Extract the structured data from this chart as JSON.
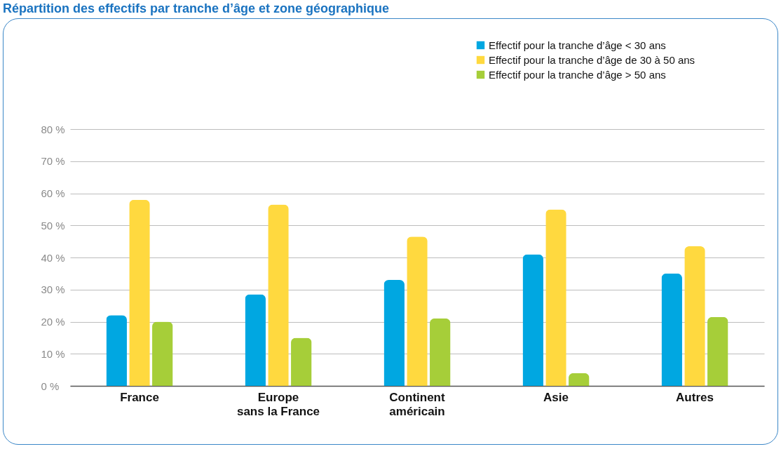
{
  "chart_data": {
    "type": "bar",
    "title": "Répartition des effectifs par tranche d’âge et zone géographique",
    "categories": [
      "France",
      "Europe\nsans la France",
      "Continent\naméricain",
      "Asie",
      "Autres"
    ],
    "series": [
      {
        "name": "Effectif pour la tranche d’âge < 30 ans",
        "color": "#00a7e1",
        "values": [
          22,
          28.5,
          33,
          41,
          35
        ]
      },
      {
        "name": "Effectif pour la tranche d’âge de 30 à 50 ans",
        "color": "#ffd93f",
        "values": [
          58,
          56.5,
          46.5,
          55,
          43.5
        ]
      },
      {
        "name": "Effectif pour la tranche d’âge > 50 ans",
        "color": "#a6ce39",
        "values": [
          20,
          15,
          21,
          4,
          21.5
        ]
      }
    ],
    "ylim": [
      0,
      80
    ],
    "yticks": [
      {
        "value": 0,
        "label": "0 %"
      },
      {
        "value": 10,
        "label": "10 %"
      },
      {
        "value": 20,
        "label": "20 %"
      },
      {
        "value": 30,
        "label": "30 %"
      },
      {
        "value": 40,
        "label": "40 %"
      },
      {
        "value": 50,
        "label": "50 %"
      },
      {
        "value": 60,
        "label": "60 %"
      },
      {
        "value": 70,
        "label": "70 %"
      },
      {
        "value": 80,
        "label": "80 %"
      }
    ],
    "grid": "y",
    "legend": "top right"
  }
}
